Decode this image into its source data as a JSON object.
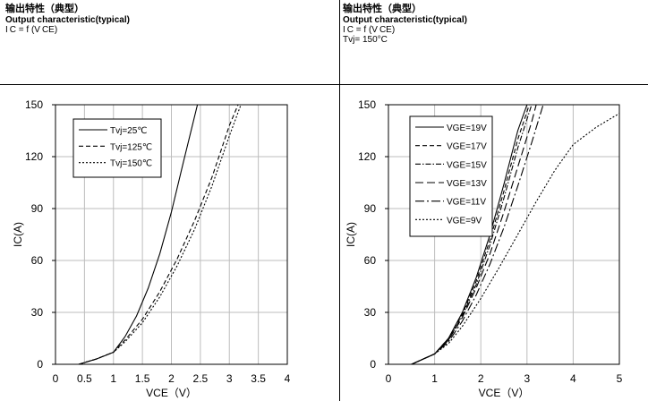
{
  "panels": [
    {
      "title": "输出特性（典型）",
      "subtitle": "Output characteristic(typical)",
      "formula": "I C = f (V CE)",
      "condition": ""
    },
    {
      "title": "输出特性（典型）",
      "subtitle": "Output characteristic(typical)",
      "formula": "I C = f (V CE)",
      "condition": "Tvj= 150°C"
    }
  ],
  "chart_data": [
    {
      "type": "line",
      "xlabel": "VCE（V）",
      "ylabel": "IC(A)",
      "xlim": [
        0,
        4
      ],
      "ylim": [
        0,
        150
      ],
      "xticks": [
        "0",
        "0.5",
        "1",
        "1.5",
        "2",
        "2.5",
        "3",
        "3.5",
        "4"
      ],
      "yticks": [
        "0",
        "30",
        "60",
        "90",
        "120",
        "150"
      ],
      "grid": true,
      "legend": "top-left",
      "series": [
        {
          "name": "Tvj=25℃",
          "dash": "solid",
          "x": [
            0.4,
            0.7,
            1.0,
            1.2,
            1.4,
            1.6,
            1.8,
            2.0,
            2.2,
            2.45
          ],
          "y": [
            0,
            3,
            7,
            16,
            28,
            44,
            64,
            88,
            116,
            150
          ]
        },
        {
          "name": "Tvj=125℃",
          "dash": "dashed",
          "x": [
            0.4,
            0.7,
            1.0,
            1.2,
            1.5,
            1.8,
            2.1,
            2.4,
            2.7,
            3.0,
            3.15
          ],
          "y": [
            0,
            3,
            7,
            14,
            26,
            42,
            61,
            83,
            108,
            138,
            150
          ]
        },
        {
          "name": "Tvj=150℃",
          "dash": "dotted",
          "x": [
            0.4,
            0.7,
            1.0,
            1.2,
            1.5,
            1.8,
            2.1,
            2.4,
            2.7,
            3.0,
            3.2
          ],
          "y": [
            0,
            3,
            7,
            13,
            24,
            39,
            57,
            78,
            103,
            132,
            150
          ]
        }
      ]
    },
    {
      "type": "line",
      "xlabel": "VCE（V）",
      "ylabel": "IC(A)",
      "xlim": [
        0,
        5
      ],
      "ylim": [
        0,
        150
      ],
      "xticks": [
        "0",
        "1",
        "2",
        "3",
        "4",
        "5"
      ],
      "yticks": [
        "0",
        "30",
        "60",
        "90",
        "120",
        "150"
      ],
      "grid": true,
      "legend": "top-left",
      "series": [
        {
          "name": "VGE=19V",
          "dash": "solid",
          "x": [
            0.5,
            1.0,
            1.3,
            1.6,
            1.9,
            2.2,
            2.5,
            2.8,
            3.0
          ],
          "y": [
            0,
            6,
            15,
            30,
            50,
            75,
            104,
            135,
            150
          ]
        },
        {
          "name": "VGE=17V",
          "dash": "dashed",
          "x": [
            0.5,
            1.0,
            1.3,
            1.6,
            1.9,
            2.2,
            2.5,
            2.8,
            3.05
          ],
          "y": [
            0,
            6,
            15,
            29,
            48,
            72,
            100,
            130,
            150
          ]
        },
        {
          "name": "VGE=15V",
          "dash": "dashdot",
          "x": [
            0.5,
            1.0,
            1.3,
            1.6,
            1.9,
            2.2,
            2.5,
            2.8,
            3.1
          ],
          "y": [
            0,
            6,
            14,
            28,
            46,
            69,
            96,
            125,
            150
          ]
        },
        {
          "name": "VGE=13V",
          "dash": "longdash",
          "x": [
            0.5,
            1.0,
            1.3,
            1.6,
            1.9,
            2.2,
            2.5,
            2.8,
            3.1,
            3.2
          ],
          "y": [
            0,
            6,
            14,
            27,
            44,
            64,
            88,
            114,
            140,
            150
          ]
        },
        {
          "name": "VGE=11V",
          "dash": "dashdotlong",
          "x": [
            0.5,
            1.0,
            1.3,
            1.6,
            1.9,
            2.2,
            2.5,
            2.8,
            3.1,
            3.35
          ],
          "y": [
            0,
            6,
            13,
            25,
            40,
            58,
            79,
            103,
            128,
            150
          ]
        },
        {
          "name": "VGE=9V",
          "dash": "dotted",
          "x": [
            0.5,
            1.0,
            1.3,
            1.6,
            2.0,
            2.4,
            2.8,
            3.2,
            3.6,
            4.0,
            4.5,
            5.0
          ],
          "y": [
            0,
            6,
            12,
            22,
            38,
            56,
            75,
            94,
            112,
            127,
            137,
            145
          ]
        }
      ]
    }
  ]
}
